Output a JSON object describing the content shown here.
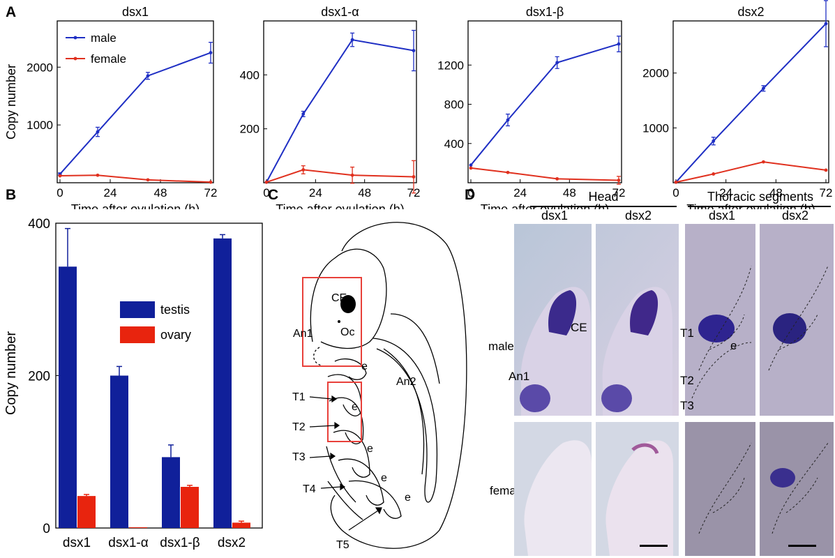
{
  "panels": {
    "A": "A",
    "B": "B",
    "C": "C",
    "D": "D"
  },
  "colors": {
    "male": "#1f2fc4",
    "female": "#e0301e",
    "testis": "#10209a",
    "ovary": "#e8240e"
  },
  "chart_data": [
    {
      "type": "line",
      "title": "dsx1",
      "xlabel": "Time after ovulation (h)",
      "ylabel": "Copy number",
      "x_ticks": [
        0,
        24,
        48,
        72
      ],
      "y_ticks": [
        1000,
        2000
      ],
      "xlim": [
        0,
        72
      ],
      "ylim": [
        0,
        2800
      ],
      "legend": [
        "male",
        "female"
      ],
      "series": [
        {
          "name": "male",
          "x": [
            0,
            18,
            42,
            72
          ],
          "values": [
            150,
            880,
            1850,
            2250
          ],
          "err": [
            20,
            80,
            60,
            180
          ]
        },
        {
          "name": "female",
          "x": [
            0,
            18,
            42,
            72
          ],
          "values": [
            120,
            130,
            50,
            10
          ],
          "err": [
            0,
            0,
            0,
            0
          ]
        }
      ]
    },
    {
      "type": "line",
      "title": "dsx1-α",
      "xlabel": "Time after ovulation (h)",
      "ylabel": "",
      "x_ticks": [
        0,
        24,
        48,
        72
      ],
      "y_ticks": [
        200,
        400
      ],
      "xlim": [
        0,
        72
      ],
      "ylim": [
        0,
        600
      ],
      "series": [
        {
          "name": "male",
          "x": [
            0,
            18,
            42,
            72
          ],
          "values": [
            2,
            255,
            530,
            490
          ],
          "err": [
            0,
            10,
            25,
            75
          ]
        },
        {
          "name": "female",
          "x": [
            0,
            18,
            42,
            72
          ],
          "values": [
            2,
            48,
            28,
            22
          ],
          "err": [
            0,
            15,
            30,
            60
          ]
        }
      ]
    },
    {
      "type": "line",
      "title": "dsx1-β",
      "xlabel": "Time after ovulation (h)",
      "ylabel": "",
      "x_ticks": [
        0,
        24,
        48,
        72
      ],
      "y_ticks": [
        400,
        800,
        1200
      ],
      "xlim": [
        0,
        72
      ],
      "ylim": [
        0,
        1650
      ],
      "series": [
        {
          "name": "male",
          "x": [
            0,
            18,
            42,
            72
          ],
          "values": [
            180,
            640,
            1225,
            1415
          ],
          "err": [
            0,
            60,
            60,
            80
          ]
        },
        {
          "name": "female",
          "x": [
            0,
            18,
            42,
            72
          ],
          "values": [
            150,
            105,
            40,
            25
          ],
          "err": [
            0,
            0,
            0,
            40
          ]
        }
      ]
    },
    {
      "type": "line",
      "title": "dsx2",
      "xlabel": "Time after ovulation (h)",
      "ylabel": "",
      "x_ticks": [
        0,
        24,
        48,
        72
      ],
      "y_ticks": [
        1000,
        2000
      ],
      "xlim": [
        0,
        72
      ],
      "ylim": [
        0,
        2950
      ],
      "series": [
        {
          "name": "male",
          "x": [
            0,
            18,
            42,
            72
          ],
          "values": [
            10,
            760,
            1720,
            2900
          ],
          "err": [
            0,
            70,
            50,
            420
          ]
        },
        {
          "name": "female",
          "x": [
            0,
            18,
            42,
            72
          ],
          "values": [
            10,
            160,
            380,
            230
          ],
          "err": [
            0,
            0,
            0,
            0
          ]
        }
      ]
    },
    {
      "type": "bar",
      "title": "",
      "xlabel": "",
      "ylabel": "Copy number",
      "categories": [
        "dsx1",
        "dsx1-α",
        "dsx1-β",
        "dsx2"
      ],
      "y_ticks": [
        0,
        200,
        400
      ],
      "ylim": [
        0,
        400
      ],
      "legend": [
        "testis",
        "ovary"
      ],
      "series": [
        {
          "name": "testis",
          "values": [
            343,
            200,
            93,
            380
          ],
          "err": [
            50,
            12,
            16,
            5
          ]
        },
        {
          "name": "ovary",
          "values": [
            42,
            1,
            54,
            7
          ],
          "err": [
            2,
            0,
            2,
            2
          ]
        }
      ]
    }
  ],
  "schematic": {
    "labels": [
      "CE",
      "Oc",
      "An1",
      "An2",
      "T1",
      "T2",
      "T3",
      "T4",
      "T5",
      "e",
      "e",
      "e",
      "e",
      "e"
    ]
  },
  "panel_d": {
    "head_header": "Head",
    "thoracic_header": "Thoracic segments",
    "col_dsx1_a": "dsx1",
    "col_dsx2_a": "dsx2",
    "col_dsx1_b": "dsx1",
    "col_dsx2_b": "dsx2",
    "row_male": "male",
    "row_female": "female",
    "lbl_ce": "CE",
    "lbl_an1": "An1",
    "lbl_t1": "T1",
    "lbl_e": "e",
    "lbl_t2": "T2",
    "lbl_t3": "T3"
  }
}
